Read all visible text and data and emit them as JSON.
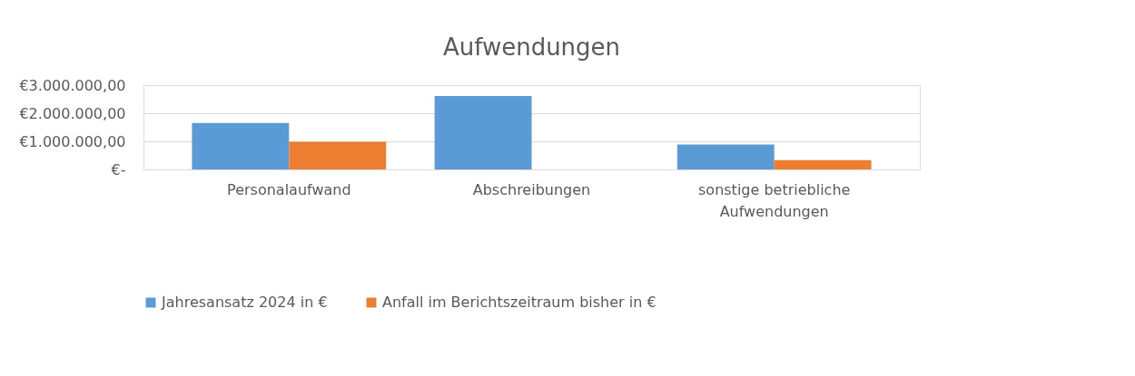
{
  "chart_data": {
    "type": "bar",
    "title": "Aufwendungen",
    "categories": [
      "Personalaufwand",
      "Abschreibungen",
      "sonstige betriebliche Aufwendungen"
    ],
    "series": [
      {
        "name": "Jahresansatz 2024 in €",
        "color": "#5b9bd5",
        "values": [
          1650000,
          2610000,
          890000
        ]
      },
      {
        "name": "Anfall im Berichtszeitraum bisher in €",
        "color": "#ed7d31",
        "values": [
          980000,
          null,
          330000
        ]
      }
    ],
    "ylim": [
      0,
      3000000
    ],
    "yticks": [
      {
        "value": 0,
        "label": "€-"
      },
      {
        "value": 1000000,
        "label": "€1.000.000,00"
      },
      {
        "value": 2000000,
        "label": "€2.000.000,00"
      },
      {
        "value": 3000000,
        "label": "€3.000.000,00"
      }
    ],
    "grid": "y",
    "legend": "bottom"
  }
}
